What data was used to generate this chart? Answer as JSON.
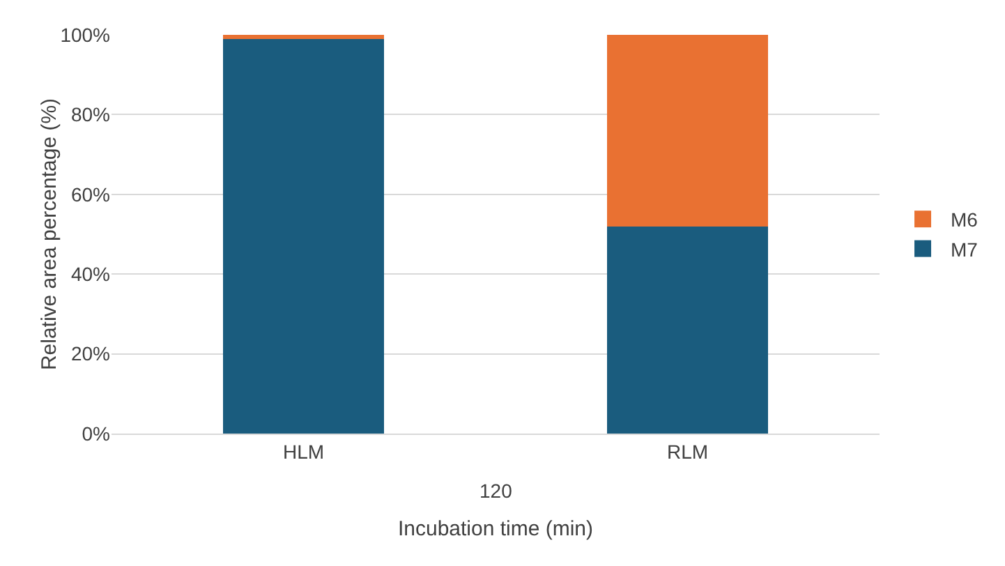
{
  "chart_data": {
    "type": "bar",
    "stacked": true,
    "xlabel": "Incubation time (min)",
    "ylabel": "Relative area percentage (%)",
    "annotations": [
      "120"
    ],
    "categories": [
      "HLM",
      "RLM"
    ],
    "series": [
      {
        "name": "M7",
        "color": "#1a5c7e",
        "values": [
          99,
          52
        ]
      },
      {
        "name": "M6",
        "color": "#e97132",
        "values": [
          1,
          48
        ]
      }
    ],
    "ylim": [
      0,
      100
    ],
    "yticks": [
      {
        "value": 0,
        "label": "0%"
      },
      {
        "value": 20,
        "label": "20%"
      },
      {
        "value": 40,
        "label": "40%"
      },
      {
        "value": 60,
        "label": "60%"
      },
      {
        "value": 80,
        "label": "80%"
      },
      {
        "value": 100,
        "label": "100%"
      }
    ],
    "grid": "y",
    "legend": "right"
  }
}
